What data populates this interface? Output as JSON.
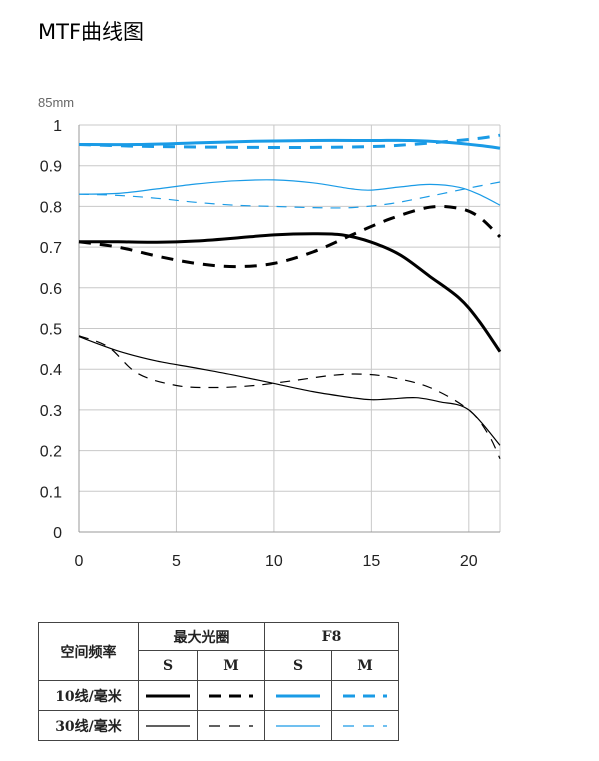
{
  "page": {
    "title": "MTF曲线图"
  },
  "chart_data": {
    "type": "line",
    "lens_label": "85mm",
    "xlim": [
      0,
      21.6
    ],
    "ylim": [
      0,
      1
    ],
    "x_ticks": [
      "0",
      "5",
      "10",
      "15",
      "20"
    ],
    "y_ticks": [
      "1",
      "0.9",
      "0.8",
      "0.7",
      "0.6",
      "0.5",
      "0.4",
      "0.3",
      "0.2",
      "0.1",
      "0"
    ],
    "grid": true,
    "colors": {
      "max_aperture": "#000000",
      "f8": "#1a9be6"
    },
    "series": [
      {
        "name": "10线/毫米 最大光圈 S",
        "style": "thick-solid-black",
        "points": [
          [
            0,
            0.713
          ],
          [
            2,
            0.713
          ],
          [
            4,
            0.712
          ],
          [
            6,
            0.715
          ],
          [
            8,
            0.722
          ],
          [
            10,
            0.73
          ],
          [
            12,
            0.733
          ],
          [
            13.5,
            0.73
          ],
          [
            15,
            0.712
          ],
          [
            16.5,
            0.68
          ],
          [
            18,
            0.628
          ],
          [
            19.5,
            0.575
          ],
          [
            20.5,
            0.52
          ],
          [
            21.6,
            0.443
          ]
        ]
      },
      {
        "name": "10线/毫米 最大光圈 M",
        "style": "thick-dashed-black",
        "points": [
          [
            0,
            0.713
          ],
          [
            2,
            0.7
          ],
          [
            4,
            0.678
          ],
          [
            6,
            0.66
          ],
          [
            8,
            0.652
          ],
          [
            10,
            0.66
          ],
          [
            12,
            0.688
          ],
          [
            14,
            0.73
          ],
          [
            16,
            0.77
          ],
          [
            18,
            0.798
          ],
          [
            19.5,
            0.795
          ],
          [
            20.5,
            0.775
          ],
          [
            21.6,
            0.725
          ]
        ]
      },
      {
        "name": "10线/毫米 F8 S",
        "style": "thick-solid-blue",
        "points": [
          [
            0,
            0.952
          ],
          [
            3,
            0.952
          ],
          [
            6,
            0.956
          ],
          [
            9,
            0.96
          ],
          [
            12,
            0.962
          ],
          [
            15,
            0.962
          ],
          [
            17,
            0.962
          ],
          [
            19,
            0.957
          ],
          [
            20.5,
            0.95
          ],
          [
            21.6,
            0.943
          ]
        ]
      },
      {
        "name": "10线/毫米 F8 M",
        "style": "thick-dashed-blue",
        "points": [
          [
            0,
            0.952
          ],
          [
            3,
            0.948
          ],
          [
            6,
            0.946
          ],
          [
            9,
            0.945
          ],
          [
            12,
            0.945
          ],
          [
            15,
            0.947
          ],
          [
            17,
            0.952
          ],
          [
            19,
            0.96
          ],
          [
            20.5,
            0.967
          ],
          [
            21.6,
            0.975
          ]
        ]
      },
      {
        "name": "30线/毫米 最大光圈 S",
        "style": "thin-solid-black",
        "points": [
          [
            0,
            0.48
          ],
          [
            2,
            0.445
          ],
          [
            4,
            0.42
          ],
          [
            6,
            0.403
          ],
          [
            8,
            0.385
          ],
          [
            10,
            0.365
          ],
          [
            12,
            0.345
          ],
          [
            14,
            0.33
          ],
          [
            15,
            0.325
          ],
          [
            16,
            0.327
          ],
          [
            17.3,
            0.33
          ],
          [
            18.5,
            0.32
          ],
          [
            20,
            0.3
          ],
          [
            21.6,
            0.213
          ]
        ]
      },
      {
        "name": "30线/毫米 最大光圈 M",
        "style": "thin-dashed-black",
        "points": [
          [
            0,
            0.482
          ],
          [
            1.5,
            0.455
          ],
          [
            3,
            0.39
          ],
          [
            5,
            0.36
          ],
          [
            7,
            0.355
          ],
          [
            9,
            0.36
          ],
          [
            11,
            0.372
          ],
          [
            13,
            0.385
          ],
          [
            14.5,
            0.388
          ],
          [
            16,
            0.38
          ],
          [
            18,
            0.355
          ],
          [
            20,
            0.3
          ],
          [
            21,
            0.24
          ],
          [
            21.6,
            0.18
          ]
        ]
      },
      {
        "name": "30线/毫米 F8 S",
        "style": "thin-solid-blue",
        "points": [
          [
            0,
            0.83
          ],
          [
            2,
            0.832
          ],
          [
            4,
            0.843
          ],
          [
            6,
            0.855
          ],
          [
            8,
            0.863
          ],
          [
            10,
            0.865
          ],
          [
            12,
            0.858
          ],
          [
            14,
            0.843
          ],
          [
            15,
            0.84
          ],
          [
            16.5,
            0.848
          ],
          [
            18,
            0.854
          ],
          [
            19.5,
            0.847
          ],
          [
            20.5,
            0.83
          ],
          [
            21.6,
            0.803
          ]
        ]
      },
      {
        "name": "30线/毫米 F8 M",
        "style": "thin-dashed-blue",
        "points": [
          [
            0,
            0.83
          ],
          [
            2,
            0.827
          ],
          [
            4,
            0.82
          ],
          [
            6,
            0.81
          ],
          [
            8,
            0.803
          ],
          [
            10,
            0.8
          ],
          [
            12,
            0.797
          ],
          [
            14,
            0.797
          ],
          [
            16,
            0.807
          ],
          [
            18,
            0.825
          ],
          [
            20,
            0.845
          ],
          [
            21.6,
            0.86
          ]
        ]
      }
    ]
  },
  "legend": {
    "row_header": "空间频率",
    "group_max": "最大光圈",
    "group_f8": "F8",
    "s_label": "S",
    "m_label": "M",
    "rows": [
      "10线/毫米",
      "30线/毫米"
    ]
  }
}
